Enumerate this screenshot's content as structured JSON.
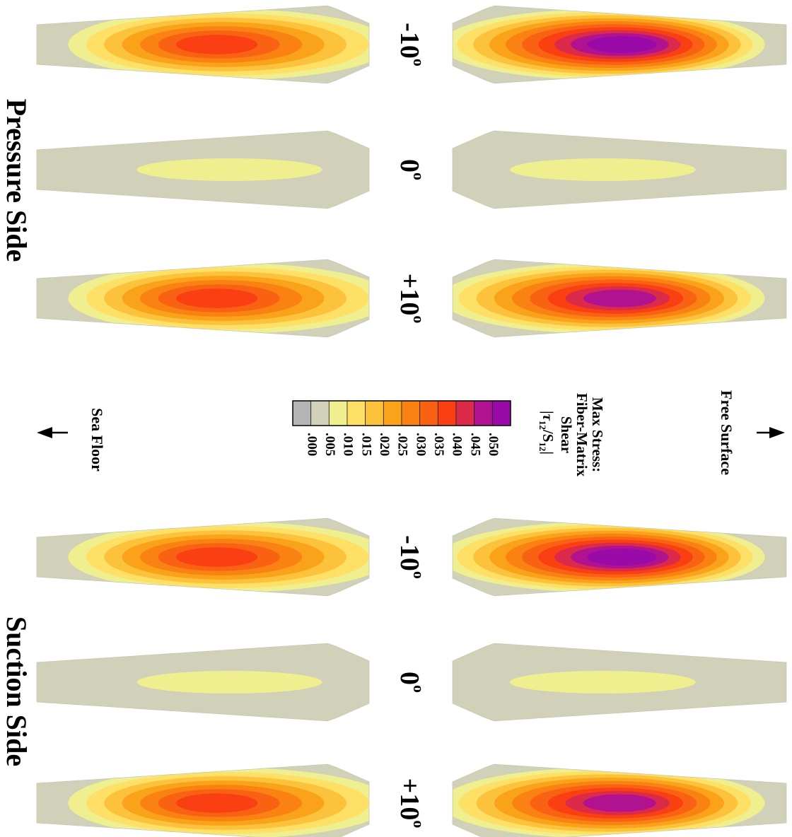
{
  "figure": {
    "sides": [
      {
        "label": "Pressure Side"
      },
      {
        "label": "Suction Side"
      }
    ],
    "angle_labels": {
      "neg": {
        "base": "-10",
        "deg": "o"
      },
      "zero": {
        "base": "0",
        "deg": "o"
      },
      "pos": {
        "base": "+10",
        "deg": "o"
      }
    },
    "direction_labels": {
      "free_surface": "Free Surface",
      "sea_floor": "Sea Floor"
    },
    "legend": {
      "title_lines": [
        "Max Stress:",
        "Fiber-Matrix",
        "Shear"
      ],
      "formula": {
        "tau": "τ",
        "tau_sub": "12",
        "s": "S",
        "s_sub": "12"
      },
      "ticks": [
        ".000",
        ".005",
        ".010",
        ".015",
        ".020",
        ".025",
        ".030",
        ".035",
        ".040",
        ".045",
        ".050"
      ],
      "colors": [
        "#b4b4b4",
        "#d1d0b8",
        "#f0ef90",
        "#fde065",
        "#fcc23c",
        "#fba21b",
        "#fa8212",
        "#fa6213",
        "#fa4012",
        "#dc2a4b",
        "#b11290",
        "#9a0aa8"
      ]
    },
    "blades": [
      {
        "side": "pressure",
        "angle": "-10",
        "row": "top",
        "peak": 0.04,
        "levels": 8
      },
      {
        "side": "pressure",
        "angle": "-10",
        "row": "bottom",
        "peak": 0.052,
        "levels": 11
      },
      {
        "side": "pressure",
        "angle": "0",
        "row": "top",
        "peak": 0.01,
        "levels": 2
      },
      {
        "side": "pressure",
        "angle": "0",
        "row": "bottom",
        "peak": 0.01,
        "levels": 2
      },
      {
        "side": "pressure",
        "angle": "+10",
        "row": "top",
        "peak": 0.04,
        "levels": 8
      },
      {
        "side": "pressure",
        "angle": "+10",
        "row": "bottom",
        "peak": 0.05,
        "levels": 10
      },
      {
        "side": "suction",
        "angle": "-10",
        "row": "top",
        "peak": 0.04,
        "levels": 8
      },
      {
        "side": "suction",
        "angle": "-10",
        "row": "bottom",
        "peak": 0.052,
        "levels": 11
      },
      {
        "side": "suction",
        "angle": "0",
        "row": "top",
        "peak": 0.01,
        "levels": 2
      },
      {
        "side": "suction",
        "angle": "0",
        "row": "bottom",
        "peak": 0.01,
        "levels": 2
      },
      {
        "side": "suction",
        "angle": "+10",
        "row": "top",
        "peak": 0.04,
        "levels": 8
      },
      {
        "side": "suction",
        "angle": "+10",
        "row": "bottom",
        "peak": 0.05,
        "levels": 10
      }
    ]
  }
}
